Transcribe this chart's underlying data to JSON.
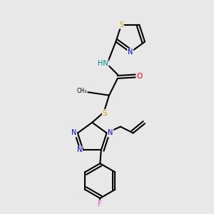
{
  "bg_color": "#e8e8e8",
  "bond_color": "#000000",
  "atom_colors": {
    "N": "#0000ff",
    "O": "#ff0000",
    "S": "#ccaa00",
    "F": "#ff44ff",
    "H": "#008888",
    "C": "#000000"
  },
  "figsize": [
    3.0,
    3.0
  ],
  "dpi": 100
}
